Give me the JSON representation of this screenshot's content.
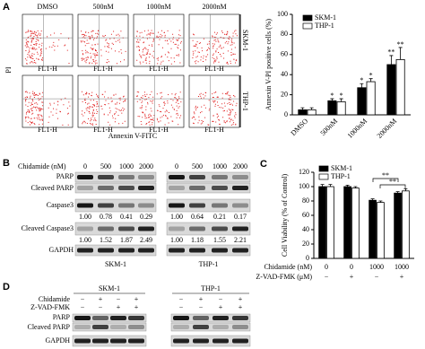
{
  "panel_labels": [
    "A",
    "B",
    "C",
    "D"
  ],
  "flow": {
    "columns": [
      "DMSO",
      "500nM",
      "1000nM",
      "2000nM"
    ],
    "rows": [
      "SKM-1",
      "THP-1"
    ],
    "y_label": "PI",
    "x_label": "Annexin V-FITC",
    "axis_label": "FL1-H"
  },
  "chart_data": [
    {
      "type": "bar",
      "y_label": "Annexin V-PI positive cells (%)",
      "categories": [
        "DMSO",
        "500nM",
        "1000nM",
        "2000nM"
      ],
      "series": [
        {
          "name": "SKM-1",
          "color": "#000000",
          "values": [
            5,
            14,
            27,
            50
          ],
          "errors": [
            2,
            2,
            4,
            9
          ],
          "significance": [
            null,
            "*",
            "*",
            "**"
          ]
        },
        {
          "name": "THP-1",
          "color": "#ffffff",
          "values": [
            5,
            13,
            33,
            55
          ],
          "errors": [
            2,
            3,
            3,
            12
          ],
          "significance": [
            null,
            "*",
            "*",
            "**"
          ]
        }
      ],
      "ylim": [
        0,
        100
      ],
      "yticks": [
        0,
        20,
        40,
        60,
        80,
        100
      ],
      "legend": "top-left"
    },
    {
      "type": "bar",
      "y_label": "Cell Viability (% of Control)",
      "categories": [
        null,
        null,
        null,
        null
      ],
      "series": [
        {
          "name": "SKM-1",
          "color": "#000000",
          "values": [
            100,
            100,
            81,
            91
          ],
          "errors": [
            3,
            2,
            2,
            2
          ]
        },
        {
          "name": "THP-1",
          "color": "#ffffff",
          "values": [
            100,
            98,
            78,
            94
          ],
          "errors": [
            3,
            2,
            2,
            3
          ]
        }
      ],
      "ylim": [
        0,
        120
      ],
      "yticks": [
        0,
        20,
        40,
        60,
        80,
        100,
        120
      ],
      "legend": "top-left",
      "conditions": [
        {
          "label": "Chidamide (nM)",
          "values": [
            "0",
            "0",
            "1000",
            "1000"
          ]
        },
        {
          "label": "Z-VAD-FMK (μM)",
          "values": [
            "−",
            "+",
            "−",
            "+"
          ]
        }
      ],
      "brackets": [
        "**",
        "**"
      ]
    }
  ],
  "blot_b": {
    "treatment_label": "Chidamide (nM)",
    "doses": [
      "0",
      "500",
      "1000",
      "2000"
    ],
    "cell_lines": [
      "SKM-1",
      "THP-1"
    ],
    "bands": [
      "PARP",
      "Cleaved PARP",
      "Caspase3",
      "Cleaved Caspase3",
      "GAPDH"
    ],
    "quant_1": [
      [
        "1.00",
        "0.78",
        "0.41",
        "0.29"
      ],
      [
        "1.00",
        "0.64",
        "0.21",
        "0.17"
      ]
    ],
    "quant_2": [
      [
        "1.00",
        "1.52",
        "1.87",
        "2.49"
      ],
      [
        "1.00",
        "1.18",
        "1.55",
        "2.21"
      ]
    ]
  },
  "blot_d": {
    "cell_lines": [
      "SKM-1",
      "THP-1"
    ],
    "rows": [
      {
        "label": "Chidamide",
        "signs": [
          [
            "−",
            "+",
            "−",
            "+"
          ],
          [
            "−",
            "+",
            "−",
            "+"
          ]
        ]
      },
      {
        "label": "Z-VAD-FMK",
        "signs": [
          [
            "−",
            "−",
            "+",
            "+"
          ],
          [
            "−",
            "−",
            "+",
            "+"
          ]
        ]
      }
    ],
    "bands": [
      "PARP",
      "Cleaved PARP",
      "GAPDH"
    ]
  }
}
